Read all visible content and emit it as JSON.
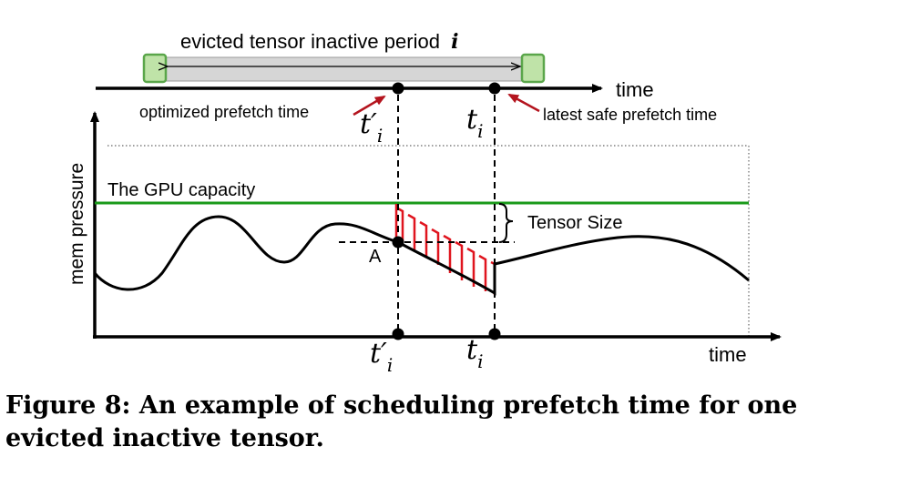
{
  "top_bar": {
    "period_label": "evicted tensor inactive period",
    "period_index": "i",
    "time_label": "time",
    "optimized_label": "optimized prefetch time",
    "latest_label": "latest safe prefetch time",
    "t_prime_i": "t′",
    "t_i": "t",
    "subscript": "i"
  },
  "plot": {
    "y_axis_label": "mem pressure",
    "x_axis_label": "time",
    "capacity_label": "The GPU capacity",
    "tensor_size_label": "Tensor Size",
    "point_a_label": "A",
    "t_prime_i": "t′",
    "t_i": "t",
    "subscript": "i"
  },
  "colors": {
    "capacity_line": "#1a9a1a",
    "hatch": "#e0141e",
    "arrow_accent": "#b4141e",
    "box_fill": "#bfe3a8",
    "box_stroke": "#5aa64a",
    "bar_fill": "#d6d6d6"
  },
  "caption": "Figure 8: An example of scheduling prefetch time for one evicted inactive tensor."
}
